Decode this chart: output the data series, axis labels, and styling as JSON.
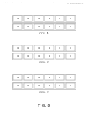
{
  "title": "FIG. 8",
  "header_left": "Patent Application Publication",
  "header_mid": "Sep. 26, 2013",
  "header_sheet": "Sheet 9 of 9",
  "header_right": "US 2013/0249342 A1",
  "background_color": "#ffffff",
  "coil_labels": [
    "COIL A",
    "COIL B",
    "COIL C"
  ],
  "num_cols": 6,
  "row1_letters": [
    "a",
    "a",
    "a",
    "a",
    "a",
    "a"
  ],
  "row2_letters": [
    "a",
    "a",
    "a",
    "a",
    "a",
    "a"
  ],
  "cell_bg": "#ffffff",
  "outer_row_bg": "#efefef",
  "coil_label_color": "#666666",
  "header_color": "#999999",
  "fig_caption_color": "#333333"
}
